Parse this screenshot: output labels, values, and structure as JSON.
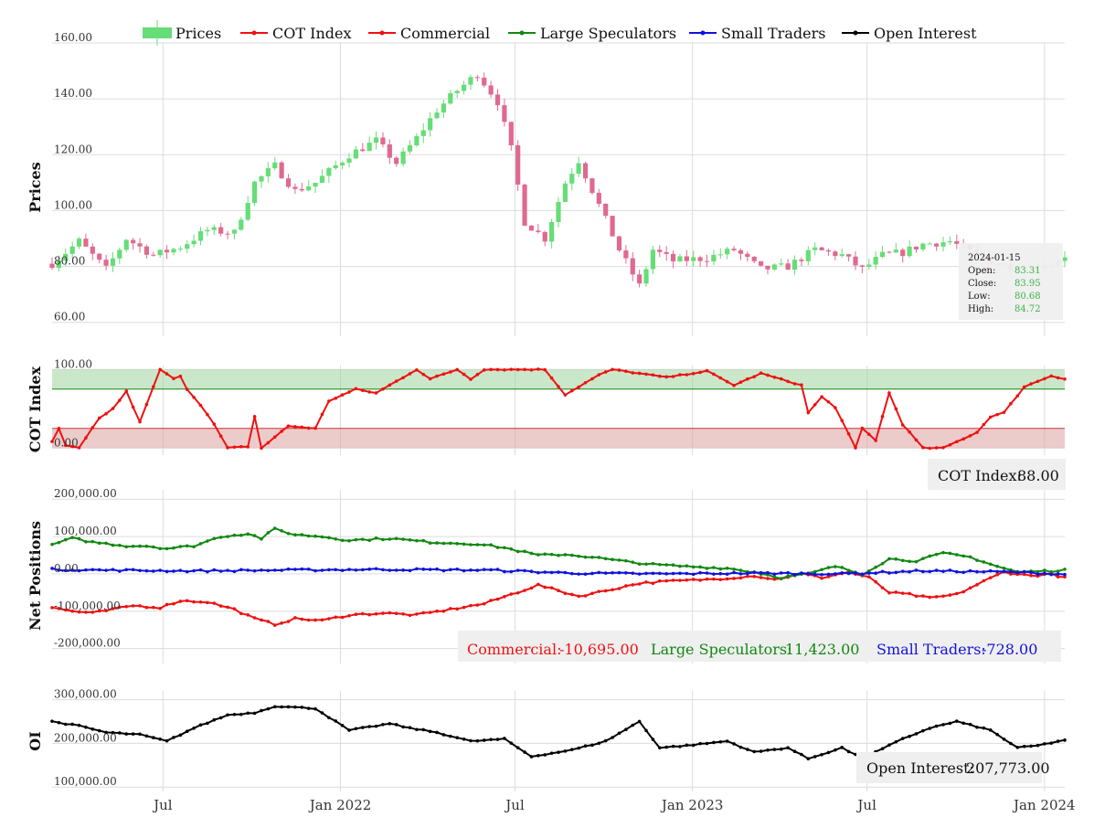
{
  "colors": {
    "candle_up": "#66dd77",
    "candle_down": "#e0698f",
    "cot": "#ee1111",
    "commercial": "#ee1111",
    "large": "#118811",
    "small": "#1111dd",
    "oi": "#000000",
    "zone_high": "#9fd39f",
    "zone_low": "#dca0a0"
  },
  "legend": [
    {
      "key": "prices",
      "label": "Prices",
      "color": "#66dd77",
      "icon": "candle-icon"
    },
    {
      "key": "cot",
      "label": "COT Index",
      "color": "#ee1111",
      "icon": "line-marker-icon"
    },
    {
      "key": "commercial",
      "label": "Commercial",
      "color": "#ee1111",
      "icon": "line-marker-icon"
    },
    {
      "key": "large",
      "label": "Large Speculators",
      "color": "#118811",
      "icon": "line-marker-icon"
    },
    {
      "key": "small",
      "label": "Small Traders",
      "color": "#1111dd",
      "icon": "line-marker-icon"
    },
    {
      "key": "oi",
      "label": "Open Interest",
      "color": "#000000",
      "icon": "line-marker-icon"
    }
  ],
  "tooltip": {
    "date": "2024-01-15",
    "open_label": "Open:",
    "open": "83.31",
    "close_label": "Close:",
    "close": "83.95",
    "low_label": "Low:",
    "low": "80.68",
    "high_label": "High:",
    "high": "84.72"
  },
  "info": {
    "cot_label": "COT Index:",
    "cot_value": "88.00",
    "commercial_label": "Commercial:",
    "commercial_value": "-10,695.00",
    "large_label": "Large Speculators:",
    "large_value": "11,423.00",
    "small_label": "Small Traders:",
    "small_value": "-728.00",
    "oi_label": "Open Interest:",
    "oi_value": "207,773.00"
  },
  "chart_data": [
    {
      "type": "candlestick",
      "ylabel": "Prices",
      "ylim": [
        55,
        160
      ],
      "yticks": [
        60,
        80,
        100,
        120,
        140,
        160
      ],
      "ytick_labels": [
        "60.00",
        "80.00",
        "100.00",
        "120.00",
        "140.00",
        "160.00"
      ],
      "x_range": [
        "2021-03-08",
        "2024-01-22"
      ],
      "xticks": [
        "2021-07-01",
        "2022-01-01",
        "2022-07-01",
        "2023-01-01",
        "2023-07-01",
        "2024-01-01"
      ],
      "xtick_labels": [
        "Jul",
        "Jan 2022",
        "Jul",
        "Jan 2023",
        "Jul",
        "Jan 2024"
      ],
      "close_anchors": [
        [
          "2021-03-08",
          81
        ],
        [
          "2021-04-05",
          89
        ],
        [
          "2021-05-03",
          79
        ],
        [
          "2021-05-24",
          90
        ],
        [
          "2021-06-21",
          84
        ],
        [
          "2021-07-19",
          87
        ],
        [
          "2021-08-16",
          93
        ],
        [
          "2021-09-13",
          92
        ],
        [
          "2021-10-04",
          110
        ],
        [
          "2021-10-25",
          116
        ],
        [
          "2021-11-15",
          107
        ],
        [
          "2021-12-06",
          110
        ],
        [
          "2022-01-10",
          120
        ],
        [
          "2022-02-07",
          125
        ],
        [
          "2022-02-28",
          117
        ],
        [
          "2022-03-21",
          126
        ],
        [
          "2022-04-11",
          136
        ],
        [
          "2022-05-02",
          143
        ],
        [
          "2022-05-23",
          149
        ],
        [
          "2022-06-13",
          139
        ],
        [
          "2022-06-27",
          122
        ],
        [
          "2022-07-11",
          96
        ],
        [
          "2022-08-01",
          90
        ],
        [
          "2022-08-22",
          110
        ],
        [
          "2022-09-05",
          118
        ],
        [
          "2022-09-26",
          102
        ],
        [
          "2022-10-17",
          86
        ],
        [
          "2022-11-07",
          73
        ],
        [
          "2022-11-21",
          86
        ],
        [
          "2022-12-12",
          82
        ],
        [
          "2023-01-16",
          83
        ],
        [
          "2023-02-13",
          86
        ],
        [
          "2023-03-13",
          79
        ],
        [
          "2023-04-10",
          80
        ],
        [
          "2023-05-08",
          86
        ],
        [
          "2023-06-05",
          84
        ],
        [
          "2023-06-26",
          79
        ],
        [
          "2023-07-17",
          84
        ],
        [
          "2023-08-07",
          85
        ],
        [
          "2023-08-28",
          88
        ],
        [
          "2023-09-25",
          89
        ],
        [
          "2023-10-23",
          84
        ],
        [
          "2023-11-13",
          81
        ],
        [
          "2023-12-11",
          79
        ],
        [
          "2024-01-08",
          81
        ],
        [
          "2024-01-22",
          84
        ]
      ]
    },
    {
      "type": "line",
      "ylabel": "COT Index",
      "ylim": [
        -9,
        105
      ],
      "yticks": [
        0,
        100
      ],
      "ytick_labels": [
        "0.00",
        "100.00"
      ],
      "zones": [
        {
          "from": 75,
          "to": 100,
          "name": "high"
        },
        {
          "from": 0,
          "to": 25,
          "name": "low"
        }
      ],
      "anchors": [
        [
          "2021-03-08",
          8
        ],
        [
          "2021-03-15",
          25
        ],
        [
          "2021-03-22",
          3
        ],
        [
          "2021-04-05",
          0
        ],
        [
          "2021-04-26",
          38
        ],
        [
          "2021-05-10",
          50
        ],
        [
          "2021-05-24",
          72
        ],
        [
          "2021-06-07",
          33
        ],
        [
          "2021-06-28",
          100
        ],
        [
          "2021-07-12",
          88
        ],
        [
          "2021-07-19",
          92
        ],
        [
          "2021-07-26",
          75
        ],
        [
          "2021-08-09",
          55
        ],
        [
          "2021-08-23",
          30
        ],
        [
          "2021-09-06",
          0
        ],
        [
          "2021-09-27",
          2
        ],
        [
          "2021-10-04",
          40
        ],
        [
          "2021-10-11",
          0
        ],
        [
          "2021-10-25",
          14
        ],
        [
          "2021-11-08",
          28
        ],
        [
          "2021-12-06",
          25
        ],
        [
          "2021-12-20",
          60
        ],
        [
          "2022-01-17",
          75
        ],
        [
          "2022-02-07",
          70
        ],
        [
          "2022-02-28",
          85
        ],
        [
          "2022-03-21",
          100
        ],
        [
          "2022-04-04",
          88
        ],
        [
          "2022-05-02",
          100
        ],
        [
          "2022-05-16",
          88
        ],
        [
          "2022-05-30",
          100
        ],
        [
          "2022-08-01",
          100
        ],
        [
          "2022-08-22",
          68
        ],
        [
          "2022-09-26",
          93
        ],
        [
          "2022-10-10",
          100
        ],
        [
          "2022-11-07",
          95
        ],
        [
          "2022-12-05",
          90
        ],
        [
          "2023-01-16",
          98
        ],
        [
          "2023-02-13",
          80
        ],
        [
          "2023-03-13",
          95
        ],
        [
          "2023-04-24",
          80
        ],
        [
          "2023-05-01",
          45
        ],
        [
          "2023-05-15",
          65
        ],
        [
          "2023-05-29",
          52
        ],
        [
          "2023-06-19",
          0
        ],
        [
          "2023-06-26",
          25
        ],
        [
          "2023-07-10",
          10
        ],
        [
          "2023-07-24",
          70
        ],
        [
          "2023-08-07",
          30
        ],
        [
          "2023-08-28",
          0
        ],
        [
          "2023-09-18",
          0
        ],
        [
          "2023-10-23",
          20
        ],
        [
          "2023-11-06",
          40
        ],
        [
          "2023-11-20",
          45
        ],
        [
          "2023-12-11",
          78
        ],
        [
          "2024-01-08",
          92
        ],
        [
          "2024-01-22",
          88
        ]
      ]
    },
    {
      "type": "line",
      "ylabel": "Net Positions",
      "ylim": [
        -240000,
        225000
      ],
      "yticks": [
        -200000,
        -100000,
        0,
        100000,
        200000
      ],
      "ytick_labels": [
        "-200,000.00",
        "-100,000.00",
        "0.00",
        "100,000.00",
        "200,000.00"
      ],
      "series": [
        {
          "name": "Commercial",
          "color_key": "commercial",
          "anchors": [
            [
              "2021-03-08",
              -90000
            ],
            [
              "2021-03-29",
              -100000
            ],
            [
              "2021-04-19",
              -105000
            ],
            [
              "2021-05-31",
              -85000
            ],
            [
              "2021-06-28",
              -90000
            ],
            [
              "2021-07-19",
              -72000
            ],
            [
              "2021-08-16",
              -75000
            ],
            [
              "2021-09-13",
              -95000
            ],
            [
              "2021-10-04",
              -120000
            ],
            [
              "2021-10-25",
              -135000
            ],
            [
              "2021-11-15",
              -120000
            ],
            [
              "2021-12-13",
              -125000
            ],
            [
              "2022-01-10",
              -110000
            ],
            [
              "2022-02-14",
              -105000
            ],
            [
              "2022-03-21",
              -110000
            ],
            [
              "2022-04-25",
              -95000
            ],
            [
              "2022-05-30",
              -80000
            ],
            [
              "2022-06-27",
              -55000
            ],
            [
              "2022-07-25",
              -30000
            ],
            [
              "2022-08-15",
              -45000
            ],
            [
              "2022-09-05",
              -60000
            ],
            [
              "2022-10-03",
              -45000
            ],
            [
              "2022-11-07",
              -25000
            ],
            [
              "2022-12-05",
              -20000
            ],
            [
              "2023-01-16",
              -15000
            ],
            [
              "2023-02-13",
              -10000
            ],
            [
              "2023-03-06",
              -5000
            ],
            [
              "2023-03-27",
              -15000
            ],
            [
              "2023-04-24",
              0
            ],
            [
              "2023-05-15",
              -10000
            ],
            [
              "2023-06-12",
              5000
            ],
            [
              "2023-07-03",
              -10000
            ],
            [
              "2023-07-24",
              -50000
            ],
            [
              "2023-08-14",
              -55000
            ],
            [
              "2023-09-04",
              -65000
            ],
            [
              "2023-10-02",
              -55000
            ],
            [
              "2023-10-30",
              -20000
            ],
            [
              "2023-11-20",
              5000
            ],
            [
              "2023-12-18",
              -5000
            ],
            [
              "2024-01-08",
              0
            ],
            [
              "2024-01-22",
              -10695
            ]
          ]
        },
        {
          "name": "Large Speculators",
          "color_key": "large",
          "anchors": [
            [
              "2021-03-08",
              78000
            ],
            [
              "2021-03-29",
              95000
            ],
            [
              "2021-04-19",
              85000
            ],
            [
              "2021-05-24",
              75000
            ],
            [
              "2021-06-14",
              75000
            ],
            [
              "2021-07-05",
              68000
            ],
            [
              "2021-08-02",
              75000
            ],
            [
              "2021-08-30",
              100000
            ],
            [
              "2021-09-27",
              108000
            ],
            [
              "2021-10-11",
              95000
            ],
            [
              "2021-10-25",
              120000
            ],
            [
              "2021-11-15",
              105000
            ],
            [
              "2021-12-13",
              100000
            ],
            [
              "2022-01-10",
              90000
            ],
            [
              "2022-02-21",
              95000
            ],
            [
              "2022-04-04",
              85000
            ],
            [
              "2022-05-23",
              80000
            ],
            [
              "2022-06-20",
              70000
            ],
            [
              "2022-07-25",
              50000
            ],
            [
              "2022-08-22",
              52000
            ],
            [
              "2022-09-19",
              45000
            ],
            [
              "2022-10-17",
              35000
            ],
            [
              "2022-11-21",
              25000
            ],
            [
              "2022-12-26",
              20000
            ],
            [
              "2023-02-06",
              15000
            ],
            [
              "2023-03-06",
              5000
            ],
            [
              "2023-04-03",
              -10000
            ],
            [
              "2023-05-01",
              0
            ],
            [
              "2023-05-29",
              20000
            ],
            [
              "2023-06-26",
              0
            ],
            [
              "2023-07-24",
              40000
            ],
            [
              "2023-08-21",
              35000
            ],
            [
              "2023-09-18",
              55000
            ],
            [
              "2023-10-16",
              45000
            ],
            [
              "2023-11-13",
              20000
            ],
            [
              "2023-12-04",
              5000
            ],
            [
              "2024-01-08",
              8000
            ],
            [
              "2024-01-22",
              11423
            ]
          ]
        },
        {
          "name": "Small Traders",
          "color_key": "small",
          "anchors": [
            [
              "2021-03-08",
              12000
            ],
            [
              "2021-05-03",
              10000
            ],
            [
              "2021-08-02",
              8000
            ],
            [
              "2021-11-01",
              10000
            ],
            [
              "2022-02-07",
              12000
            ],
            [
              "2022-06-06",
              10000
            ],
            [
              "2022-08-29",
              2000
            ],
            [
              "2022-11-28",
              0
            ],
            [
              "2023-03-06",
              2000
            ],
            [
              "2023-06-05",
              0
            ],
            [
              "2023-08-28",
              8000
            ],
            [
              "2023-11-27",
              5000
            ],
            [
              "2024-01-22",
              -728
            ]
          ]
        }
      ]
    },
    {
      "type": "line",
      "ylabel": "OI",
      "ylim": [
        90000,
        320000
      ],
      "yticks": [
        100000,
        200000,
        300000
      ],
      "ytick_labels": [
        "100,000.00",
        "200,000.00",
        "300,000.00"
      ],
      "series": [
        {
          "name": "Open Interest",
          "color_key": "oi",
          "anchors": [
            [
              "2021-03-08",
              250000
            ],
            [
              "2021-04-05",
              240000
            ],
            [
              "2021-05-03",
              225000
            ],
            [
              "2021-06-07",
              220000
            ],
            [
              "2021-07-05",
              205000
            ],
            [
              "2021-08-02",
              235000
            ],
            [
              "2021-09-06",
              265000
            ],
            [
              "2021-10-04",
              270000
            ],
            [
              "2021-10-25",
              285000
            ],
            [
              "2021-12-06",
              280000
            ],
            [
              "2022-01-10",
              230000
            ],
            [
              "2022-02-21",
              245000
            ],
            [
              "2022-03-14",
              235000
            ],
            [
              "2022-04-11",
              225000
            ],
            [
              "2022-05-16",
              205000
            ],
            [
              "2022-06-20",
              210000
            ],
            [
              "2022-07-18",
              170000
            ],
            [
              "2022-08-29",
              185000
            ],
            [
              "2022-10-03",
              205000
            ],
            [
              "2022-11-07",
              250000
            ],
            [
              "2022-11-28",
              190000
            ],
            [
              "2022-12-26",
              195000
            ],
            [
              "2023-02-06",
              205000
            ],
            [
              "2023-03-06",
              180000
            ],
            [
              "2023-04-10",
              190000
            ],
            [
              "2023-05-01",
              165000
            ],
            [
              "2023-06-05",
              190000
            ],
            [
              "2023-06-26",
              165000
            ],
            [
              "2023-08-07",
              210000
            ],
            [
              "2023-09-04",
              235000
            ],
            [
              "2023-10-02",
              250000
            ],
            [
              "2023-11-06",
              230000
            ],
            [
              "2023-12-04",
              190000
            ],
            [
              "2023-12-25",
              195000
            ],
            [
              "2024-01-22",
              207773
            ]
          ]
        }
      ]
    }
  ]
}
